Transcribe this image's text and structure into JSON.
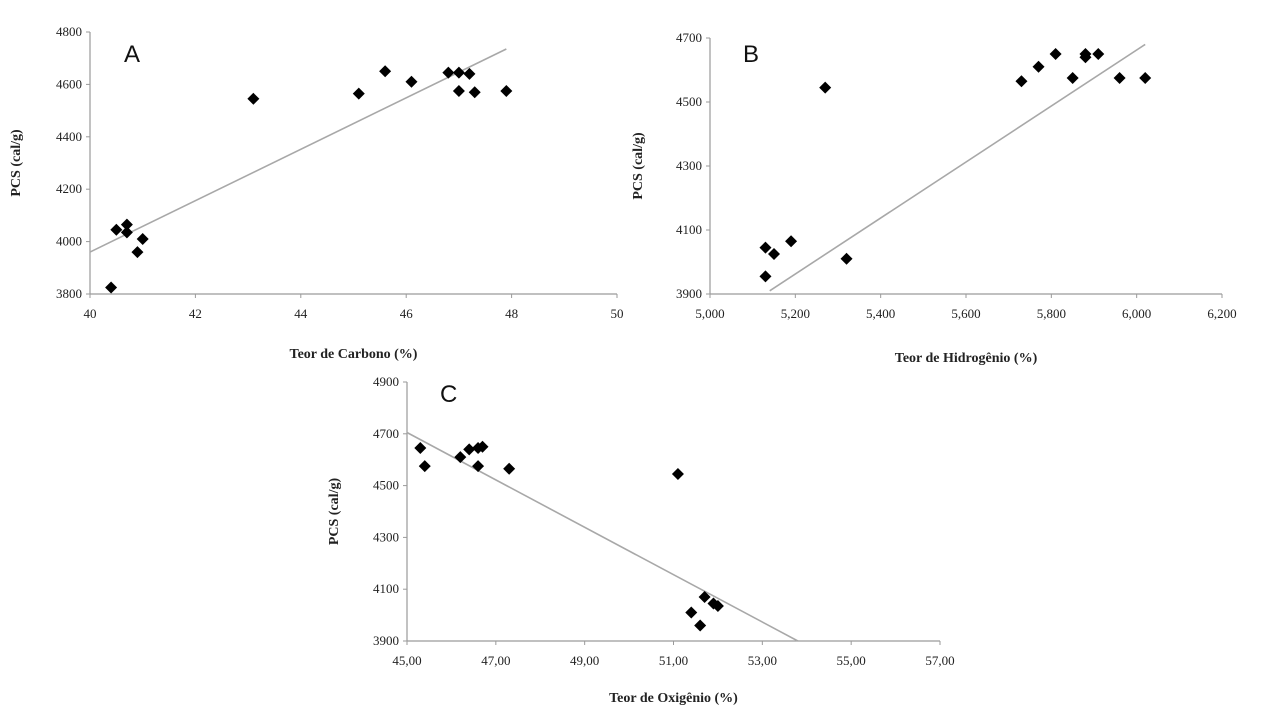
{
  "chart_data": [
    {
      "type": "scatter",
      "panel_label": "A",
      "xlabel": "Teor de Carbono (%)",
      "ylabel": "PCS (cal/g)",
      "xlim": [
        40,
        50
      ],
      "ylim": [
        3800,
        4800
      ],
      "x_ticks": [
        "40",
        "42",
        "44",
        "46",
        "48",
        "50"
      ],
      "y_ticks": [
        "3800",
        "4000",
        "4200",
        "4400",
        "4600",
        "4800"
      ],
      "points": [
        {
          "x": 40.4,
          "y": 3825
        },
        {
          "x": 40.5,
          "y": 4045
        },
        {
          "x": 40.7,
          "y": 4065
        },
        {
          "x": 40.7,
          "y": 4035
        },
        {
          "x": 40.9,
          "y": 3960
        },
        {
          "x": 41.0,
          "y": 4010
        },
        {
          "x": 43.1,
          "y": 4545
        },
        {
          "x": 45.1,
          "y": 4565
        },
        {
          "x": 45.6,
          "y": 4650
        },
        {
          "x": 46.1,
          "y": 4610
        },
        {
          "x": 46.8,
          "y": 4645
        },
        {
          "x": 47.0,
          "y": 4645
        },
        {
          "x": 47.0,
          "y": 4575
        },
        {
          "x": 47.2,
          "y": 4640
        },
        {
          "x": 47.3,
          "y": 4570
        },
        {
          "x": 47.9,
          "y": 4575
        }
      ],
      "trendline": [
        {
          "x": 40.0,
          "y": 3960
        },
        {
          "x": 47.9,
          "y": 4735
        }
      ]
    },
    {
      "type": "scatter",
      "panel_label": "B",
      "xlabel": "Teor de Hidrogênio (%)",
      "ylabel": "PCS (cal/g)",
      "xlim": [
        5.0,
        6.2
      ],
      "ylim": [
        3900,
        4700
      ],
      "x_ticks": [
        "5,000",
        "5,200",
        "5,400",
        "5,600",
        "5,800",
        "6,000",
        "6,200"
      ],
      "y_ticks": [
        "3900",
        "4100",
        "4300",
        "4500",
        "4700"
      ],
      "points": [
        {
          "x": 5.13,
          "y": 4045
        },
        {
          "x": 5.15,
          "y": 4025
        },
        {
          "x": 5.13,
          "y": 3955
        },
        {
          "x": 5.19,
          "y": 4065
        },
        {
          "x": 5.27,
          "y": 4545
        },
        {
          "x": 5.32,
          "y": 4010
        },
        {
          "x": 5.73,
          "y": 4565
        },
        {
          "x": 5.77,
          "y": 4610
        },
        {
          "x": 5.81,
          "y": 4650
        },
        {
          "x": 5.85,
          "y": 4575
        },
        {
          "x": 5.88,
          "y": 4640
        },
        {
          "x": 5.88,
          "y": 4650
        },
        {
          "x": 5.91,
          "y": 4650
        },
        {
          "x": 5.96,
          "y": 4575
        },
        {
          "x": 6.02,
          "y": 4575
        }
      ],
      "trendline": [
        {
          "x": 5.14,
          "y": 3910
        },
        {
          "x": 6.02,
          "y": 4680
        }
      ]
    },
    {
      "type": "scatter",
      "panel_label": "C",
      "xlabel": "Teor de Oxigênio (%)",
      "ylabel": "PCS (cal/g)",
      "xlim": [
        45,
        57
      ],
      "ylim": [
        3900,
        4900
      ],
      "x_ticks": [
        "45,00",
        "47,00",
        "49,00",
        "51,00",
        "53,00",
        "55,00",
        "57,00"
      ],
      "y_ticks": [
        "3900",
        "4100",
        "4300",
        "4500",
        "4700",
        "4900"
      ],
      "points": [
        {
          "x": 45.3,
          "y": 4645
        },
        {
          "x": 45.4,
          "y": 4575
        },
        {
          "x": 46.2,
          "y": 4610
        },
        {
          "x": 46.4,
          "y": 4640
        },
        {
          "x": 46.6,
          "y": 4645
        },
        {
          "x": 46.7,
          "y": 4650
        },
        {
          "x": 46.6,
          "y": 4575
        },
        {
          "x": 47.3,
          "y": 4565
        },
        {
          "x": 51.1,
          "y": 4545
        },
        {
          "x": 51.4,
          "y": 4010
        },
        {
          "x": 51.6,
          "y": 3960
        },
        {
          "x": 51.7,
          "y": 4070
        },
        {
          "x": 51.9,
          "y": 4045
        },
        {
          "x": 52.0,
          "y": 4035
        }
      ],
      "trendline": [
        {
          "x": 45.0,
          "y": 4705
        },
        {
          "x": 53.8,
          "y": 3900
        }
      ]
    }
  ]
}
